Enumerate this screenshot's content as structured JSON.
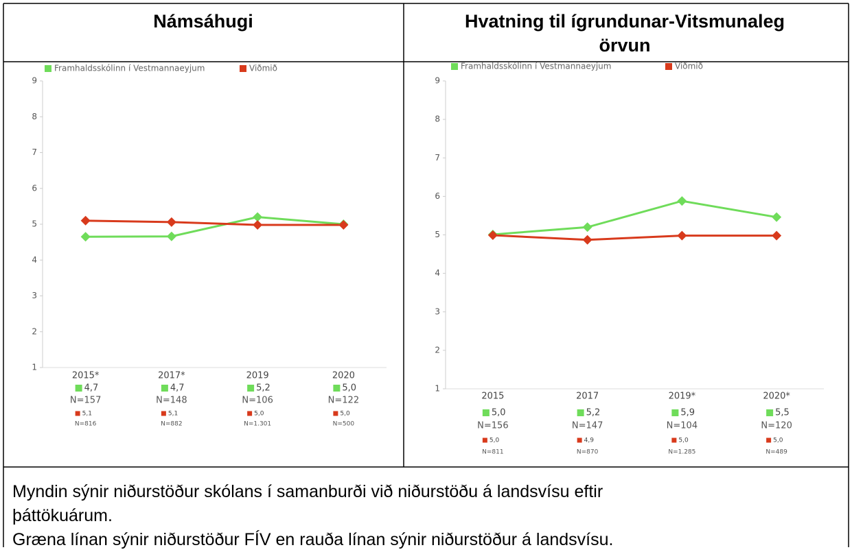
{
  "table": {
    "headers": [
      "Námsáhugi",
      [
        "Hvatning til ígrundunar-Vitsmunaleg",
        "örvun"
      ]
    ],
    "caption": [
      "Myndin sýnir niðurstöður skólans í samanburði við niðurstöðu á landsvísu eftir þáttökuárum.",
      "Græna línan sýnir niðurstöður FÍV en rauða línan sýnir niðurstöður á landsvísu."
    ]
  },
  "chart_data": [
    {
      "type": "line",
      "categories": [
        "2015*",
        "2017*",
        "2019",
        "2020"
      ],
      "ylim": [
        1,
        9
      ],
      "yticks": [
        1,
        2,
        3,
        4,
        5,
        6,
        7,
        8,
        9
      ],
      "series": [
        {
          "name": "Framhaldsskólinn í Vestmannaeyjum",
          "color": "#6fdc5a",
          "values": [
            4.65,
            4.66,
            5.2,
            5.0
          ],
          "value_labels": [
            "4,7",
            "4,7",
            "5,2",
            "5,0"
          ],
          "n_labels": [
            "N=157",
            "N=148",
            "N=106",
            "N=122"
          ]
        },
        {
          "name": "Viðmið",
          "color": "#d83a1c",
          "values": [
            5.1,
            5.06,
            4.98,
            4.98
          ],
          "value_labels": [
            "5,1",
            "5,1",
            "5,0",
            "5,0"
          ],
          "n_labels": [
            "N=816",
            "N=882",
            "N=1.301",
            "N=500"
          ]
        }
      ]
    },
    {
      "type": "line",
      "categories": [
        "2015",
        "2017",
        "2019*",
        "2020*"
      ],
      "ylim": [
        1,
        9
      ],
      "yticks": [
        1,
        2,
        3,
        4,
        5,
        6,
        7,
        8,
        9
      ],
      "series": [
        {
          "name": "Framhaldsskólinn í Vestmannaeyjum",
          "color": "#6fdc5a",
          "values": [
            5.01,
            5.2,
            5.88,
            5.46
          ],
          "value_labels": [
            "5,0",
            "5,2",
            "5,9",
            "5,5"
          ],
          "n_labels": [
            "N=156",
            "N=147",
            "N=104",
            "N=120"
          ]
        },
        {
          "name": "Viðmið",
          "color": "#d83a1c",
          "values": [
            4.99,
            4.87,
            4.98,
            4.98
          ],
          "value_labels": [
            "5,0",
            "4,9",
            "5,0",
            "5,0"
          ],
          "n_labels": [
            "N=811",
            "N=870",
            "N=1.285",
            "N=489"
          ]
        }
      ]
    }
  ]
}
